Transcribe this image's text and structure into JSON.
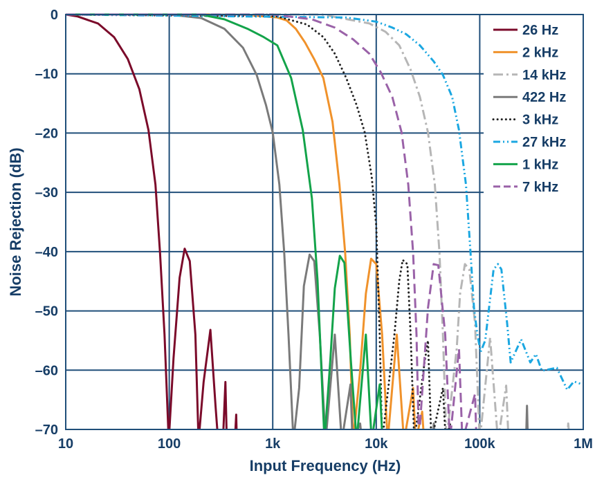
{
  "chart_data": {
    "type": "line",
    "xlabel": "Input Frequency (Hz)",
    "ylabel": "Noise Rejection (dB)",
    "x_scale": "log",
    "xlim": [
      10,
      1000000
    ],
    "ylim": [
      -70,
      0
    ],
    "x_ticks": [
      {
        "v": 10,
        "label": "10"
      },
      {
        "v": 100,
        "label": "100"
      },
      {
        "v": 1000,
        "label": "1k"
      },
      {
        "v": 10000,
        "label": "10k"
      },
      {
        "v": 100000,
        "label": "100k"
      },
      {
        "v": 1000000,
        "label": "1M"
      }
    ],
    "y_ticks": [
      {
        "v": 0,
        "label": "0"
      },
      {
        "v": -10,
        "label": "–10"
      },
      {
        "v": -20,
        "label": "–20"
      },
      {
        "v": -30,
        "label": "–30"
      },
      {
        "v": -40,
        "label": "–40"
      },
      {
        "v": -50,
        "label": "–50"
      },
      {
        "v": -60,
        "label": "–60"
      },
      {
        "v": -70,
        "label": "–70"
      }
    ],
    "grid": true,
    "legend_position": "top-right",
    "series": [
      {
        "name": "26 Hz",
        "color": "#7b0a2a",
        "style": "solid",
        "points": [
          [
            10,
            0
          ],
          [
            12.9,
            -0.3
          ],
          [
            20.5,
            -1.5
          ],
          [
            29.3,
            -3.8
          ],
          [
            39.8,
            -7.5
          ],
          [
            51.4,
            -12.6
          ],
          [
            63,
            -19.5
          ],
          [
            73.6,
            -28.7
          ],
          [
            81.5,
            -40.2
          ],
          [
            90,
            -54
          ],
          [
            99,
            -72
          ],
          [
            110,
            -58
          ],
          [
            126,
            -44.4
          ],
          [
            141,
            -39.5
          ],
          [
            158,
            -41.6
          ],
          [
            179,
            -54
          ],
          [
            192,
            -72
          ],
          [
            215,
            -62
          ],
          [
            250,
            -53.2
          ],
          [
            280,
            -66
          ],
          [
            297,
            -72
          ],
          [
            330,
            -72
          ],
          [
            349,
            -62
          ],
          [
            360,
            -72
          ],
          [
            430,
            -72
          ],
          [
            444,
            -67.5
          ],
          [
            450,
            -72
          ]
        ]
      },
      {
        "name": "2 kHz",
        "color": "#f0922b",
        "style": "solid",
        "points": [
          [
            10,
            0
          ],
          [
            500,
            0
          ],
          [
            1107,
            -0.5
          ],
          [
            1365,
            -1
          ],
          [
            1670,
            -2.4
          ],
          [
            2050,
            -4.7
          ],
          [
            2510,
            -7.5
          ],
          [
            3080,
            -10.7
          ],
          [
            3780,
            -18.1
          ],
          [
            4410,
            -28.7
          ],
          [
            5010,
            -40.2
          ],
          [
            5550,
            -54
          ],
          [
            6000,
            -72
          ],
          [
            7000,
            -60
          ],
          [
            7940,
            -47.1
          ],
          [
            8930,
            -41.2
          ],
          [
            10000,
            -42.1
          ],
          [
            11400,
            -54
          ],
          [
            12900,
            -72
          ],
          [
            15800,
            -54
          ],
          [
            18500,
            -72
          ],
          [
            22700,
            -63
          ],
          [
            24000,
            -72
          ],
          [
            27800,
            -67
          ],
          [
            29000,
            -72
          ]
        ]
      },
      {
        "name": "14 kHz",
        "color": "#b6b6b6",
        "style": "dashdot",
        "points": [
          [
            10,
            0
          ],
          [
            3000,
            0
          ],
          [
            8580,
            -1.5
          ],
          [
            12300,
            -2.9
          ],
          [
            16700,
            -5.2
          ],
          [
            21500,
            -9.3
          ],
          [
            26400,
            -13.9
          ],
          [
            31600,
            -19.9
          ],
          [
            36800,
            -28.7
          ],
          [
            40800,
            -40.2
          ],
          [
            44100,
            -54
          ],
          [
            47600,
            -72
          ],
          [
            59900,
            -56.4
          ],
          [
            64600,
            -47.1
          ],
          [
            71900,
            -42.1
          ],
          [
            79400,
            -43
          ],
          [
            90000,
            -52.1
          ],
          [
            100000,
            -72
          ],
          [
            126000,
            -54.5
          ],
          [
            150000,
            -72
          ],
          [
            180000,
            -62.6
          ],
          [
            190000,
            -72
          ],
          [
            700000,
            -72
          ],
          [
            716000,
            -69
          ],
          [
            740000,
            -72
          ]
        ]
      },
      {
        "name": "422 Hz",
        "color": "#7a7a7a",
        "style": "solid",
        "points": [
          [
            10,
            0
          ],
          [
            100,
            0
          ],
          [
            204,
            -0.6
          ],
          [
            341,
            -2.4
          ],
          [
            516,
            -5.6
          ],
          [
            700,
            -10.2
          ],
          [
            861,
            -15.3
          ],
          [
            1000,
            -19.9
          ],
          [
            1160,
            -28.7
          ],
          [
            1292,
            -40.2
          ],
          [
            1420,
            -54
          ],
          [
            1585,
            -72
          ],
          [
            1800,
            -63
          ],
          [
            2000,
            -45.8
          ],
          [
            2270,
            -40.5
          ],
          [
            2520,
            -41.6
          ],
          [
            2850,
            -54
          ],
          [
            3240,
            -72
          ],
          [
            3980,
            -54
          ],
          [
            4640,
            -72
          ],
          [
            5640,
            -62.4
          ],
          [
            5900,
            -72
          ],
          [
            6990,
            -69
          ],
          [
            7300,
            -72
          ],
          [
            35000,
            -72
          ],
          [
            36000,
            -69
          ],
          [
            37000,
            -72
          ],
          [
            280000,
            -72
          ],
          [
            286000,
            -66
          ],
          [
            292000,
            -72
          ]
        ]
      },
      {
        "name": "3 kHz",
        "color": "#222222",
        "style": "dotted",
        "points": [
          [
            10,
            0
          ],
          [
            1107,
            -0.3
          ],
          [
            2150,
            -1.7
          ],
          [
            3080,
            -3.8
          ],
          [
            3980,
            -6.6
          ],
          [
            5130,
            -10.7
          ],
          [
            6470,
            -15.3
          ],
          [
            7740,
            -19.9
          ],
          [
            9030,
            -27.3
          ],
          [
            10000,
            -35.6
          ],
          [
            10400,
            -44.9
          ],
          [
            10800,
            -54
          ],
          [
            11400,
            -72
          ],
          [
            15000,
            -54
          ],
          [
            16700,
            -44.9
          ],
          [
            18000,
            -41.4
          ],
          [
            20000,
            -42.1
          ],
          [
            21500,
            -54
          ],
          [
            23300,
            -72
          ],
          [
            29300,
            -58.7
          ],
          [
            31600,
            -55
          ],
          [
            34100,
            -72
          ],
          [
            44100,
            -63
          ],
          [
            47000,
            -72
          ],
          [
            52000,
            -69
          ],
          [
            55000,
            -72
          ]
        ]
      },
      {
        "name": "27 kHz",
        "color": "#1ba7e1",
        "style": "dashdotdot",
        "points": [
          [
            10,
            0
          ],
          [
            5130,
            -0.5
          ],
          [
            10000,
            -1.2
          ],
          [
            14300,
            -2.2
          ],
          [
            19400,
            -3.3
          ],
          [
            26400,
            -5.2
          ],
          [
            35900,
            -7.9
          ],
          [
            44100,
            -10.2
          ],
          [
            54100,
            -13.9
          ],
          [
            63000,
            -19.5
          ],
          [
            73600,
            -28.7
          ],
          [
            81500,
            -40.2
          ],
          [
            88000,
            -49.5
          ],
          [
            94900,
            -54
          ],
          [
            102000,
            -56.9
          ],
          [
            113000,
            -55
          ],
          [
            136000,
            -43
          ],
          [
            150000,
            -42.1
          ],
          [
            162000,
            -43
          ],
          [
            184000,
            -52.1
          ],
          [
            199000,
            -58.7
          ],
          [
            251000,
            -54.8
          ],
          [
            308000,
            -58.7
          ],
          [
            349000,
            -57.3
          ],
          [
            398000,
            -60.1
          ],
          [
            556000,
            -59.6
          ],
          [
            700000,
            -63.3
          ],
          [
            812000,
            -61.9
          ],
          [
            977000,
            -62.4
          ]
        ]
      },
      {
        "name": "1 kHz",
        "color": "#13a34a",
        "style": "solid",
        "points": [
          [
            10,
            0
          ],
          [
            200,
            0
          ],
          [
            341,
            -0.8
          ],
          [
            570,
            -2.4
          ],
          [
            817,
            -3.8
          ],
          [
            1107,
            -5.2
          ],
          [
            1505,
            -10.7
          ],
          [
            1950,
            -19.5
          ],
          [
            2390,
            -31
          ],
          [
            2710,
            -44.9
          ],
          [
            3160,
            -72
          ],
          [
            3590,
            -58.7
          ],
          [
            3980,
            -46.2
          ],
          [
            4450,
            -40.7
          ],
          [
            4930,
            -41.9
          ],
          [
            5700,
            -58.7
          ],
          [
            6470,
            -72
          ],
          [
            7940,
            -54
          ],
          [
            9030,
            -72
          ],
          [
            10800,
            -62.4
          ],
          [
            11500,
            -72
          ]
        ]
      },
      {
        "name": "7 kHz",
        "color": "#9a62a8",
        "style": "dashed",
        "points": [
          [
            10,
            0
          ],
          [
            1000,
            0
          ],
          [
            2390,
            -0.8
          ],
          [
            3980,
            -2.2
          ],
          [
            5990,
            -4.2
          ],
          [
            8580,
            -6.6
          ],
          [
            11100,
            -9.8
          ],
          [
            14300,
            -13.9
          ],
          [
            17600,
            -19.9
          ],
          [
            20400,
            -28.7
          ],
          [
            22700,
            -40.2
          ],
          [
            24500,
            -54
          ],
          [
            25800,
            -72
          ],
          [
            31600,
            -49.5
          ],
          [
            35900,
            -42.1
          ],
          [
            39800,
            -42.3
          ],
          [
            46400,
            -54
          ],
          [
            51400,
            -72
          ],
          [
            63000,
            -56.4
          ],
          [
            68000,
            -72
          ],
          [
            90000,
            -64
          ],
          [
            93000,
            -72
          ]
        ]
      }
    ]
  }
}
